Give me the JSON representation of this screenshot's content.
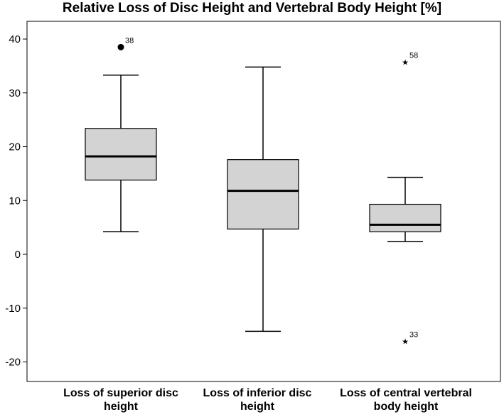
{
  "chart_data": {
    "type": "boxplot",
    "title": "Relative Loss of Disc Height and Vertebral Body Height [%]",
    "xlabel": "",
    "ylabel": "",
    "ylim": [
      -22,
      42
    ],
    "yticks": [
      -20,
      -10,
      0,
      10,
      20,
      30,
      40
    ],
    "grid": false,
    "categories": [
      "Loss of superior disc height",
      "Loss of inferior disc height",
      "Loss of central vertebral body height"
    ],
    "boxes": [
      {
        "category": "Loss of superior disc height",
        "whisker_low": 4.2,
        "q1": 13.8,
        "median": 18.2,
        "q3": 23.4,
        "whisker_high": 33.3,
        "outliers": [
          {
            "value": 38.5,
            "label": "38",
            "marker": "circle"
          }
        ]
      },
      {
        "category": "Loss of inferior disc height",
        "whisker_low": -14.3,
        "q1": 4.7,
        "median": 11.8,
        "q3": 17.6,
        "whisker_high": 34.8,
        "outliers": []
      },
      {
        "category": "Loss of central vertebral body height",
        "whisker_low": 2.4,
        "q1": 4.2,
        "median": 5.5,
        "q3": 9.3,
        "whisker_high": 14.3,
        "outliers": [
          {
            "value": 35.7,
            "label": "58",
            "marker": "star"
          },
          {
            "value": -16.2,
            "label": "33",
            "marker": "star"
          }
        ]
      }
    ],
    "colors": {
      "box_fill": "#d3d3d3",
      "stroke": "#000000",
      "background": "#ffffff"
    }
  },
  "labels": {
    "cat0": "Loss of superior disc height",
    "cat1": "Loss of inferior disc height",
    "cat2": "Loss of central vertebral body height"
  }
}
